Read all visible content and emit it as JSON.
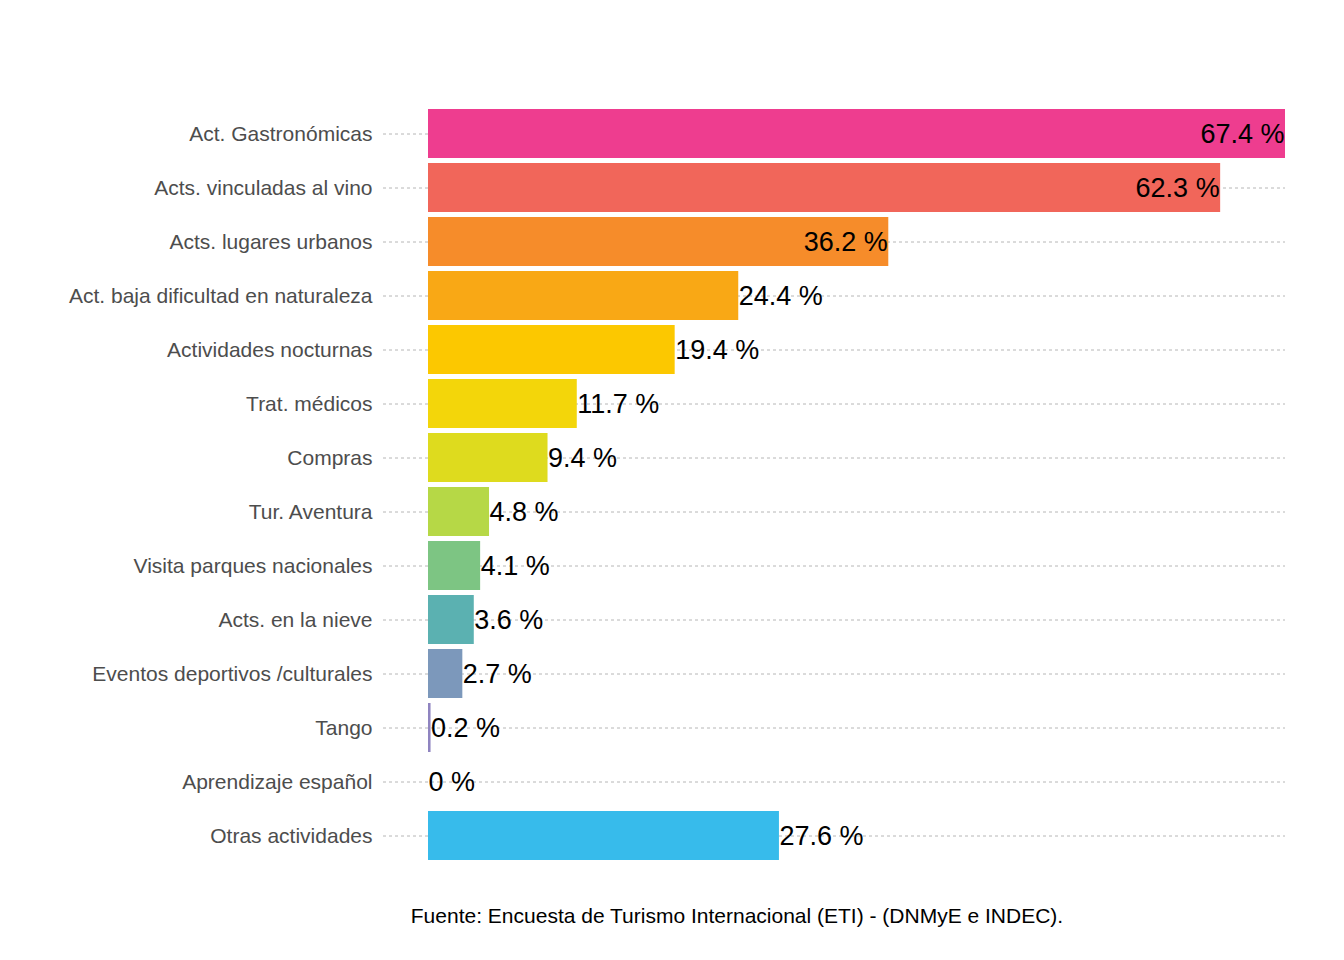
{
  "chart_data": {
    "type": "bar",
    "orientation": "horizontal",
    "caption": "Fuente: Encuesta de Turismo Internacional (ETI) - (DNMyE e INDEC).",
    "categories": [
      "Act. Gastronómicas",
      "Acts. vinculadas al vino",
      "Acts. lugares urbanos",
      "Act. baja dificultad en naturaleza",
      "Actividades nocturnas",
      "Trat. médicos",
      "Compras",
      "Tur. Aventura",
      "Visita parques nacionales",
      "Acts. en la nieve",
      "Eventos deportivos /culturales",
      "Tango",
      "Aprendizaje español",
      "Otras actividades"
    ],
    "values": [
      67.4,
      62.3,
      36.2,
      24.4,
      19.4,
      11.7,
      9.4,
      4.8,
      4.1,
      3.6,
      2.7,
      0.2,
      0,
      27.6
    ],
    "value_labels": [
      "67.4 %",
      "62.3 %",
      "36.2 %",
      "24.4 %",
      "19.4 %",
      "11.7 %",
      "9.4 %",
      "4.8 %",
      "4.1 %",
      "3.6 %",
      "2.7 %",
      "0.2 %",
      "0 %",
      "27.6 %"
    ],
    "colors": [
      "#ee3d8f",
      "#f1665a",
      "#f68c2a",
      "#f9a815",
      "#fcc800",
      "#f3d60a",
      "#dedb1e",
      "#b6d846",
      "#7dc583",
      "#5bb1b1",
      "#7c98bb",
      "#8f84c0",
      "#a88bc4",
      "#37bbeb"
    ],
    "xlim": [
      0,
      67.4
    ],
    "data_labels": true,
    "grid": true,
    "tick_labels": "y"
  }
}
